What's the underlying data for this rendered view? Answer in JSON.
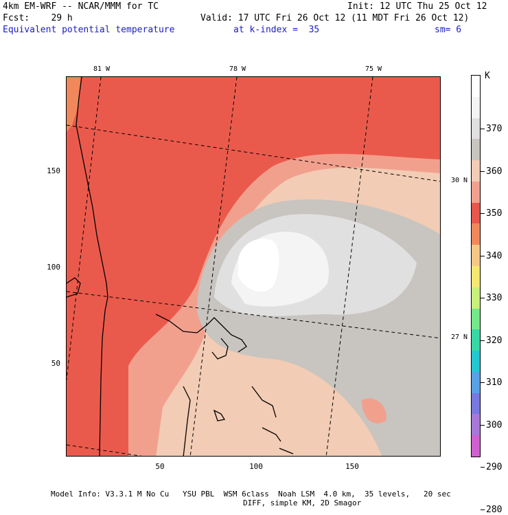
{
  "header": {
    "model": "4km EM-WRF -- NCAR/MMM for TC",
    "init": "Init: 12 UTC Thu 25 Oct 12",
    "fcst": "Fcst:    29 h",
    "valid": "Valid: 17 UTC Fri 26 Oct 12 (11 MDT Fri 26 Oct 12)",
    "field": "Equivalent potential temperature",
    "kindex": "at k-index =  35",
    "sm": "sm= 6"
  },
  "footer": {
    "line1": "Model Info: V3.3.1 M No Cu   YSU PBL  WSM 6class  Noah LSM  4.0 km,  35 levels,   20 sec",
    "line2": "DIFF, simple KM, 2D Smagor"
  },
  "map": {
    "lon_labels": [
      "81 W",
      "78 W",
      "75 W"
    ],
    "lat_labels": [
      "30 N",
      "27 N"
    ],
    "y_ticks": [
      "150",
      "100",
      "50"
    ],
    "x_ticks": [
      "50",
      "100",
      "150"
    ]
  },
  "colorbar": {
    "unit": "K",
    "labels": [
      "370",
      "360",
      "350",
      "340",
      "330",
      "320",
      "310",
      "300",
      "290",
      "280"
    ],
    "colors": [
      "#ffffff",
      "#f4f4f4",
      "#e0e0e0",
      "#c8c4c0",
      "#f2ccb4",
      "#f2a08e",
      "#e8564c",
      "#f0885c",
      "#f6c888",
      "#f4e870",
      "#c8f07a",
      "#74e88a",
      "#36d8a6",
      "#22c8d0",
      "#5aa0e8",
      "#7878e0",
      "#a878d8",
      "#d060d0"
    ]
  }
}
